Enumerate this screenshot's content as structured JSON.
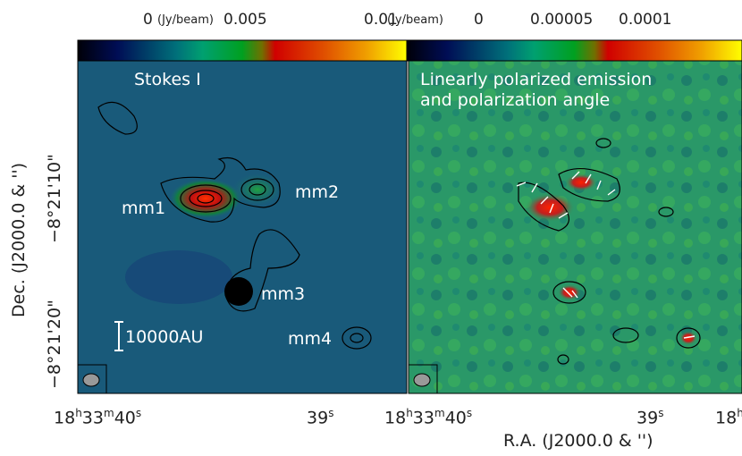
{
  "chart_data": [
    {
      "type": "heatmap",
      "panel_label": "Stokes I",
      "colorbar": {
        "unit": "(Jy/beam)",
        "tick_labels": [
          "0",
          "0.005",
          "0.01"
        ],
        "range": [
          0,
          0.013
        ],
        "colormap": [
          "#000000",
          "#001060",
          "#00a070",
          "#00a000",
          "#d00000",
          "#f0a000",
          "#ffff00"
        ]
      },
      "sources": [
        {
          "name": "mm1",
          "ra": "18h33m39.5s",
          "dec": "-8°21'12\""
        },
        {
          "name": "mm2",
          "ra": "18h33m39.2s",
          "dec": "-8°21'11\""
        },
        {
          "name": "mm3",
          "ra": "18h33m39.4s",
          "dec": "-8°21'18\""
        },
        {
          "name": "mm4",
          "ra": "18h33m38.7s",
          "dec": "-8°21'21\""
        }
      ],
      "scale_bar": "10000AU",
      "x_tick_labels": [
        "18h33m40s",
        "39s",
        "18h"
      ],
      "y_tick_labels": [
        "-8°21'10\"",
        "-8°21'20\""
      ],
      "ylabel": "Dec. (J2000.0 & '')"
    },
    {
      "type": "heatmap",
      "panel_label": [
        "Linearly polarized emission",
        "and polarization angle"
      ],
      "colorbar": {
        "unit": "(Jy/beam)",
        "tick_labels": [
          "0",
          "0.00005",
          "0.0001"
        ],
        "range": [
          0,
          0.00013
        ]
      },
      "x_tick_labels": [
        "18h33m40s",
        "39s",
        "18h"
      ],
      "xlabel": "R.A. (J2000.0 & '')"
    }
  ],
  "labels": {
    "cb1_zero": "0",
    "cb1_unit": "(Jy/beam)",
    "cb1_mid": "0.005",
    "cb1_max": "0.01",
    "cb2_unit": "(Jy/beam)",
    "cb2_zero": "0",
    "cb2_mid": "0.00005",
    "cb2_max": "0.0001",
    "p1_title": "Stokes I",
    "p2_title1": "Linearly polarized emission",
    "p2_title2": "and polarization angle",
    "mm1": "mm1",
    "mm2": "mm2",
    "mm3": "mm3",
    "mm4": "mm4",
    "scale": "10000AU",
    "ylabel": "Dec. (J2000.0 & '')",
    "ytick1": "−8°21'10\"",
    "ytick2": "−8°21'20\"",
    "xlabel": "R.A. (J2000.0 & '')",
    "h": "18",
    "m": "33",
    "s": "40",
    "s39": "39"
  }
}
